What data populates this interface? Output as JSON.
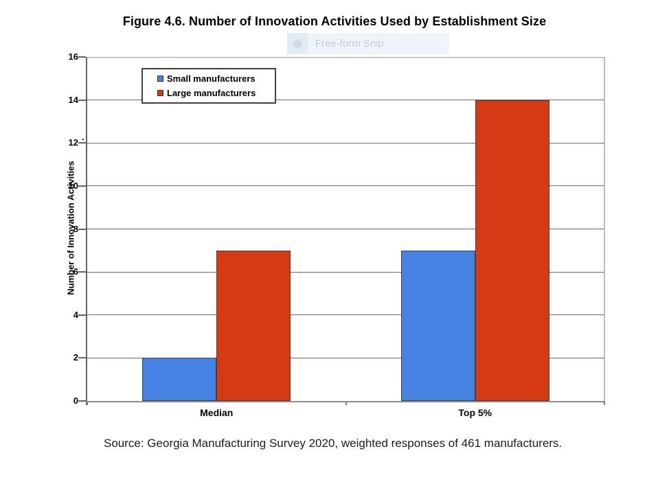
{
  "chart_data": {
    "type": "bar",
    "title": "Figure 4.6. Number of Innovation Activities Used by Establishment Size",
    "categories": [
      "Median",
      "Top 5%"
    ],
    "series": [
      {
        "name": "Small manufacturers",
        "values": [
          2,
          7
        ],
        "color": "#4682E4"
      },
      {
        "name": "Large manufacturers",
        "values": [
          7,
          14
        ],
        "color": "#D63A14"
      }
    ],
    "xlabel": "",
    "ylabel": "Number of Innovation Activities",
    "ylim": [
      0,
      16
    ],
    "ytick_step": 2,
    "grid": true,
    "legend_position": "top-left-inside",
    "source_note": "Source: Georgia Manufacturing Survey 2020, weighted responses of 461 manufacturers."
  },
  "snip_overlay": {
    "label": "Free-form Snip",
    "icon": "circle-icon"
  },
  "stray_mark": "."
}
